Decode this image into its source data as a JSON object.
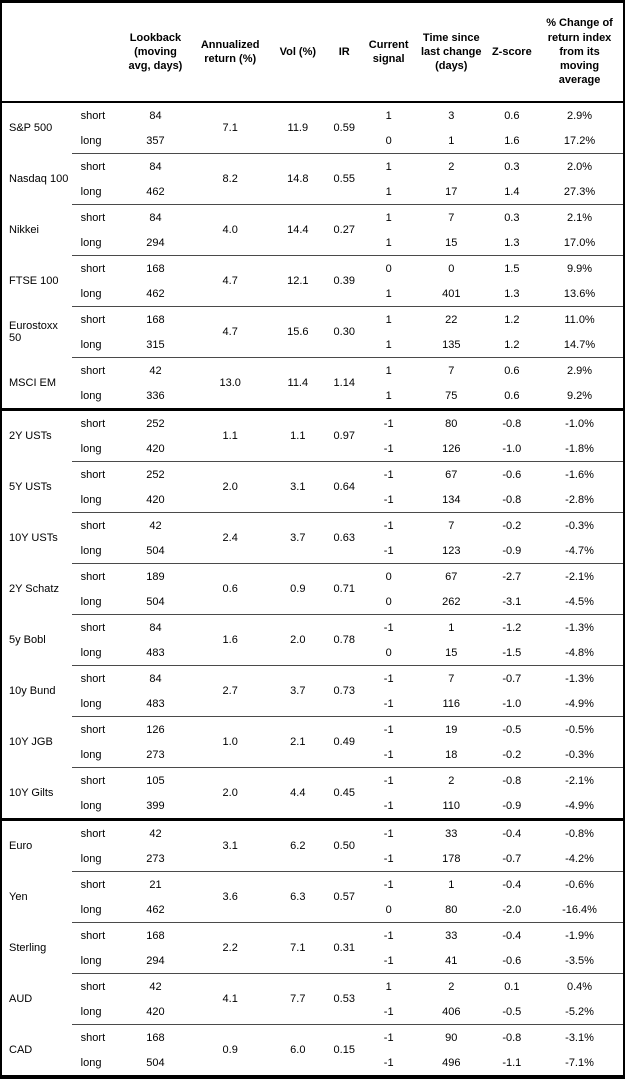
{
  "header": {
    "lookback": "Lookback (moving avg, days)",
    "annualized_return": "Annualized return (%)",
    "vol": "Vol (%)",
    "ir": "IR",
    "current_signal": "Current signal",
    "time_since": "Time since last change (days)",
    "z_score": "Z-score",
    "pct_change": "% Change of return index from its moving average"
  },
  "row_labels": {
    "short": "short",
    "long": "long"
  },
  "sections": [
    {
      "assets": [
        {
          "name": "S&P 500",
          "annualized_return": "7.1",
          "vol": "11.9",
          "ir": "0.59",
          "short": {
            "lookback": "84",
            "signal": "1",
            "time_since": "3",
            "z_score": "0.6",
            "pct_change": "2.9%"
          },
          "long": {
            "lookback": "357",
            "signal": "0",
            "time_since": "1",
            "z_score": "1.6",
            "pct_change": "17.2%"
          }
        },
        {
          "name": "Nasdaq 100",
          "annualized_return": "8.2",
          "vol": "14.8",
          "ir": "0.55",
          "short": {
            "lookback": "84",
            "signal": "1",
            "time_since": "2",
            "z_score": "0.3",
            "pct_change": "2.0%"
          },
          "long": {
            "lookback": "462",
            "signal": "1",
            "time_since": "17",
            "z_score": "1.4",
            "pct_change": "27.3%"
          }
        },
        {
          "name": "Nikkei",
          "annualized_return": "4.0",
          "vol": "14.4",
          "ir": "0.27",
          "short": {
            "lookback": "84",
            "signal": "1",
            "time_since": "7",
            "z_score": "0.3",
            "pct_change": "2.1%"
          },
          "long": {
            "lookback": "294",
            "signal": "1",
            "time_since": "15",
            "z_score": "1.3",
            "pct_change": "17.0%"
          }
        },
        {
          "name": "FTSE 100",
          "annualized_return": "4.7",
          "vol": "12.1",
          "ir": "0.39",
          "short": {
            "lookback": "168",
            "signal": "0",
            "time_since": "0",
            "z_score": "1.5",
            "pct_change": "9.9%"
          },
          "long": {
            "lookback": "462",
            "signal": "1",
            "time_since": "401",
            "z_score": "1.3",
            "pct_change": "13.6%"
          }
        },
        {
          "name": "Eurostoxx 50",
          "annualized_return": "4.7",
          "vol": "15.6",
          "ir": "0.30",
          "short": {
            "lookback": "168",
            "signal": "1",
            "time_since": "22",
            "z_score": "1.2",
            "pct_change": "11.0%"
          },
          "long": {
            "lookback": "315",
            "signal": "1",
            "time_since": "135",
            "z_score": "1.2",
            "pct_change": "14.7%"
          }
        },
        {
          "name": "MSCI EM",
          "annualized_return": "13.0",
          "vol": "11.4",
          "ir": "1.14",
          "short": {
            "lookback": "42",
            "signal": "1",
            "time_since": "7",
            "z_score": "0.6",
            "pct_change": "2.9%"
          },
          "long": {
            "lookback": "336",
            "signal": "1",
            "time_since": "75",
            "z_score": "0.6",
            "pct_change": "9.2%"
          }
        }
      ]
    },
    {
      "assets": [
        {
          "name": "2Y USTs",
          "annualized_return": "1.1",
          "vol": "1.1",
          "ir": "0.97",
          "short": {
            "lookback": "252",
            "signal": "-1",
            "time_since": "80",
            "z_score": "-0.8",
            "pct_change": "-1.0%"
          },
          "long": {
            "lookback": "420",
            "signal": "-1",
            "time_since": "126",
            "z_score": "-1.0",
            "pct_change": "-1.8%"
          }
        },
        {
          "name": "5Y USTs",
          "annualized_return": "2.0",
          "vol": "3.1",
          "ir": "0.64",
          "short": {
            "lookback": "252",
            "signal": "-1",
            "time_since": "67",
            "z_score": "-0.6",
            "pct_change": "-1.6%"
          },
          "long": {
            "lookback": "420",
            "signal": "-1",
            "time_since": "134",
            "z_score": "-0.8",
            "pct_change": "-2.8%"
          }
        },
        {
          "name": "10Y USTs",
          "annualized_return": "2.4",
          "vol": "3.7",
          "ir": "0.63",
          "short": {
            "lookback": "42",
            "signal": "-1",
            "time_since": "7",
            "z_score": "-0.2",
            "pct_change": "-0.3%"
          },
          "long": {
            "lookback": "504",
            "signal": "-1",
            "time_since": "123",
            "z_score": "-0.9",
            "pct_change": "-4.7%"
          }
        },
        {
          "name": "2Y Schatz",
          "annualized_return": "0.6",
          "vol": "0.9",
          "ir": "0.71",
          "short": {
            "lookback": "189",
            "signal": "0",
            "time_since": "67",
            "z_score": "-2.7",
            "pct_change": "-2.1%"
          },
          "long": {
            "lookback": "504",
            "signal": "0",
            "time_since": "262",
            "z_score": "-3.1",
            "pct_change": "-4.5%"
          }
        },
        {
          "name": "5y Bobl",
          "annualized_return": "1.6",
          "vol": "2.0",
          "ir": "0.78",
          "short": {
            "lookback": "84",
            "signal": "-1",
            "time_since": "1",
            "z_score": "-1.2",
            "pct_change": "-1.3%"
          },
          "long": {
            "lookback": "483",
            "signal": "0",
            "time_since": "15",
            "z_score": "-1.5",
            "pct_change": "-4.8%"
          }
        },
        {
          "name": "10y Bund",
          "annualized_return": "2.7",
          "vol": "3.7",
          "ir": "0.73",
          "short": {
            "lookback": "84",
            "signal": "-1",
            "time_since": "7",
            "z_score": "-0.7",
            "pct_change": "-1.3%"
          },
          "long": {
            "lookback": "483",
            "signal": "-1",
            "time_since": "116",
            "z_score": "-1.0",
            "pct_change": "-4.9%"
          }
        },
        {
          "name": "10Y JGB",
          "annualized_return": "1.0",
          "vol": "2.1",
          "ir": "0.49",
          "short": {
            "lookback": "126",
            "signal": "-1",
            "time_since": "19",
            "z_score": "-0.5",
            "pct_change": "-0.5%"
          },
          "long": {
            "lookback": "273",
            "signal": "-1",
            "time_since": "18",
            "z_score": "-0.2",
            "pct_change": "-0.3%"
          }
        },
        {
          "name": "10Y Gilts",
          "annualized_return": "2.0",
          "vol": "4.4",
          "ir": "0.45",
          "short": {
            "lookback": "105",
            "signal": "-1",
            "time_since": "2",
            "z_score": "-0.8",
            "pct_change": "-2.1%"
          },
          "long": {
            "lookback": "399",
            "signal": "-1",
            "time_since": "110",
            "z_score": "-0.9",
            "pct_change": "-4.9%"
          }
        }
      ]
    },
    {
      "assets": [
        {
          "name": "Euro",
          "annualized_return": "3.1",
          "vol": "6.2",
          "ir": "0.50",
          "short": {
            "lookback": "42",
            "signal": "-1",
            "time_since": "33",
            "z_score": "-0.4",
            "pct_change": "-0.8%"
          },
          "long": {
            "lookback": "273",
            "signal": "-1",
            "time_since": "178",
            "z_score": "-0.7",
            "pct_change": "-4.2%"
          }
        },
        {
          "name": "Yen",
          "annualized_return": "3.6",
          "vol": "6.3",
          "ir": "0.57",
          "short": {
            "lookback": "21",
            "signal": "-1",
            "time_since": "1",
            "z_score": "-0.4",
            "pct_change": "-0.6%"
          },
          "long": {
            "lookback": "462",
            "signal": "0",
            "time_since": "80",
            "z_score": "-2.0",
            "pct_change": "-16.4%"
          }
        },
        {
          "name": "Sterling",
          "annualized_return": "2.2",
          "vol": "7.1",
          "ir": "0.31",
          "short": {
            "lookback": "168",
            "signal": "-1",
            "time_since": "33",
            "z_score": "-0.4",
            "pct_change": "-1.9%"
          },
          "long": {
            "lookback": "294",
            "signal": "-1",
            "time_since": "41",
            "z_score": "-0.6",
            "pct_change": "-3.5%"
          }
        },
        {
          "name": "AUD",
          "annualized_return": "4.1",
          "vol": "7.7",
          "ir": "0.53",
          "short": {
            "lookback": "42",
            "signal": "1",
            "time_since": "2",
            "z_score": "0.1",
            "pct_change": "0.4%"
          },
          "long": {
            "lookback": "420",
            "signal": "-1",
            "time_since": "406",
            "z_score": "-0.5",
            "pct_change": "-5.2%"
          }
        },
        {
          "name": "CAD",
          "annualized_return": "0.9",
          "vol": "6.0",
          "ir": "0.15",
          "short": {
            "lookback": "168",
            "signal": "-1",
            "time_since": "90",
            "z_score": "-0.8",
            "pct_change": "-3.1%"
          },
          "long": {
            "lookback": "504",
            "signal": "-1",
            "time_since": "496",
            "z_score": "-1.1",
            "pct_change": "-7.1%"
          }
        }
      ]
    }
  ]
}
